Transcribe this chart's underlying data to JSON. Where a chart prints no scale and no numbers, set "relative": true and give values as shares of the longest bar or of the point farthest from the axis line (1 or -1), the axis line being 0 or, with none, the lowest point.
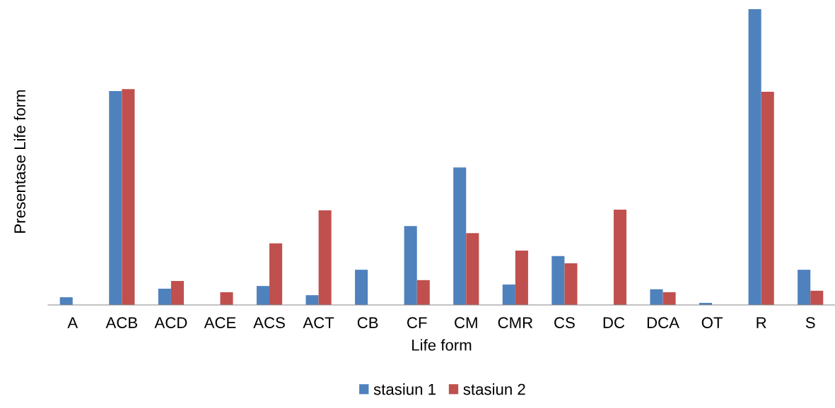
{
  "chart_data": {
    "type": "bar",
    "xlabel": "Life form",
    "ylabel": "Presentase Life form",
    "relative": true,
    "legend": "bottom",
    "grid": false,
    "categories": [
      "A",
      "ACB",
      "ACD",
      "ACE",
      "ACS",
      "ACT",
      "CB",
      "CF",
      "CM",
      "CMR",
      "CS",
      "DC",
      "DCA",
      "OT",
      "R",
      "S"
    ],
    "series": [
      {
        "name": "stasiun 1",
        "color": "#4f81bd",
        "values": [
          0.026,
          0.723,
          0.055,
          0,
          0.064,
          0.033,
          0.119,
          0.267,
          0.465,
          0.069,
          0.165,
          0,
          0.053,
          0.007,
          1,
          0.119
        ]
      },
      {
        "name": "stasiun 2",
        "color": "#c0504d",
        "values": [
          0,
          0.73,
          0.081,
          0.043,
          0.208,
          0.32,
          0,
          0.084,
          0.243,
          0.184,
          0.141,
          0.322,
          0.043,
          0,
          0.721,
          0.048
        ]
      }
    ]
  }
}
